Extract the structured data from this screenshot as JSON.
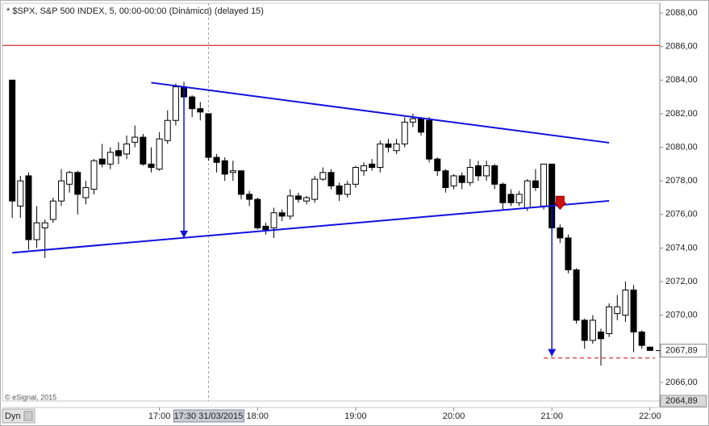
{
  "chart_data": {
    "type": "candlestick",
    "title": "* $SPX, S&P 500 INDEX, 5, 00:00-00:00 (Dinámico) (delayed 15)",
    "copyright": "© eSignal, 2015",
    "tab": "Dyn",
    "up_color": "#ffffff",
    "down_color": "#000000",
    "x": [
      "15:30",
      "15:35",
      "15:40",
      "15:45",
      "15:50",
      "15:55",
      "16:00",
      "16:05",
      "16:10",
      "16:15",
      "16:20",
      "16:25",
      "16:30",
      "16:35",
      "16:40",
      "16:45",
      "16:50",
      "16:55",
      "17:00",
      "17:05",
      "17:10",
      "17:15",
      "17:20",
      "17:25",
      "17:30",
      "17:35",
      "17:40",
      "17:45",
      "17:50",
      "17:55",
      "18:00",
      "18:05",
      "18:10",
      "18:15",
      "18:20",
      "18:25",
      "18:30",
      "18:35",
      "18:40",
      "18:45",
      "18:50",
      "18:55",
      "19:00",
      "19:05",
      "19:10",
      "19:15",
      "19:20",
      "19:25",
      "19:30",
      "19:35",
      "19:40",
      "19:45",
      "19:50",
      "19:55",
      "20:00",
      "20:05",
      "20:10",
      "20:15",
      "20:20",
      "20:25",
      "20:30",
      "20:35",
      "20:40",
      "20:45",
      "20:50",
      "20:55",
      "21:00",
      "21:05",
      "21:10",
      "21:15",
      "21:20",
      "21:25",
      "21:30",
      "21:35",
      "21:40",
      "21:45",
      "21:50",
      "21:55",
      "22:00"
    ],
    "open": [
      2084,
      2076.5,
      2078.3,
      2074.5,
      2075.2,
      2075.7,
      2076.8,
      2077.8,
      2078.5,
      2077,
      2077.5,
      2079.3,
      2079,
      2079.8,
      2079.6,
      2080.3,
      2080.6,
      2079,
      2078.7,
      2080.4,
      2081.6,
      2083.6,
      2083,
      2082.3,
      2082,
      2079.4,
      2079.2,
      2078.5,
      2078.6,
      2077.2,
      2076.9,
      2075.3,
      2075.2,
      2076.1,
      2075.9,
      2077.1,
      2076.8,
      2076.9,
      2078.1,
      2078.5,
      2077.7,
      2077.2,
      2077.8,
      2078.6,
      2079,
      2078.8,
      2080.2,
      2079.8,
      2080.2,
      2081.5,
      2081.7,
      2081.6,
      2079.3,
      2078.6,
      2077.7,
      2078.3,
      2077.9,
      2078.9,
      2078.3,
      2078.9,
      2077.8,
      2077.2,
      2076.7,
      2076.4,
      2078,
      2076.5,
      2079,
      2075.2,
      2074.6,
      2072.7,
      2069.7,
      2068.5,
      2069,
      2068.9,
      2070.1,
      2070,
      2071.5,
      2069,
      2068.1
    ],
    "high": [
      2084,
      2078.3,
      2078.5,
      2076.5,
      2075.7,
      2077,
      2078.7,
      2078.6,
      2078.6,
      2078,
      2079.3,
      2080.2,
      2080,
      2080.3,
      2080.7,
      2081.3,
      2080.8,
      2080,
      2080.9,
      2082.2,
      2083.8,
      2083.9,
      2083.1,
      2082.7,
      2082,
      2079.6,
      2079.4,
      2079.2,
      2078.6,
      2077.4,
      2077,
      2075.5,
      2076.4,
      2076.3,
      2077.5,
      2077.3,
      2077.1,
      2078.3,
      2078.8,
      2078.7,
      2077.9,
      2078,
      2078.9,
      2079.1,
      2079.3,
      2080.4,
      2080.5,
      2080.5,
      2081.8,
      2082,
      2081.8,
      2081.8,
      2079.4,
      2078.7,
      2078.4,
      2078.5,
      2079.3,
      2079.2,
      2079.2,
      2079,
      2077.9,
      2077.5,
      2077.4,
      2078.1,
      2078.7,
      2079,
      2079,
      2075.4,
      2074.8,
      2072.8,
      2069.8,
      2070,
      2069.2,
      2070.7,
      2071.2,
      2072,
      2071.8,
      2069.1,
      2068.1
    ],
    "low": [
      2075.8,
      2075.8,
      2073.9,
      2074,
      2073.4,
      2075.5,
      2076.5,
      2077.3,
      2076,
      2076.6,
      2077.2,
      2078.8,
      2078.7,
      2079,
      2079.3,
      2080,
      2078.9,
      2078.5,
      2078.6,
      2080.2,
      2081.3,
      2082.7,
      2081.8,
      2081.6,
      2079.2,
      2078.5,
      2078,
      2078,
      2076.9,
      2076.5,
      2075.1,
      2074.8,
      2074.6,
      2075.6,
      2075.7,
      2076.7,
      2076.6,
      2076.7,
      2078,
      2077.5,
      2076.8,
      2077,
      2077.6,
      2078.3,
      2078.6,
      2078.5,
      2079.7,
      2079.6,
      2080,
      2081.2,
      2080.7,
      2079.1,
      2078.3,
      2077.3,
      2077.5,
      2077.5,
      2077.7,
      2078,
      2078,
      2077.5,
      2076.3,
      2076.5,
      2076.5,
      2076.2,
      2077.4,
      2076.3,
      2074.8,
      2074.3,
      2072.5,
      2069.5,
      2068,
      2068.3,
      2067,
      2068.7,
      2069.7,
      2069.6,
      2067.8,
      2068,
      2067.9
    ],
    "close": [
      2076.8,
      2078,
      2074.5,
      2075.5,
      2075.5,
      2076.8,
      2078,
      2078.5,
      2077.2,
      2077.6,
      2079.2,
      2079,
      2079.7,
      2079.5,
      2080.2,
      2080.6,
      2079,
      2078.8,
      2080.5,
      2081.6,
      2083.6,
      2083,
      2082.3,
      2082.1,
      2079.4,
      2079.1,
      2078.4,
      2078.6,
      2077.2,
      2076.9,
      2075.2,
      2075.1,
      2076.1,
      2075.9,
      2077.1,
      2076.9,
      2077,
      2078.1,
      2078.5,
      2077.7,
      2077.2,
      2077.8,
      2078.8,
      2078.9,
      2078.8,
      2080.2,
      2080,
      2080.2,
      2081.5,
      2081.7,
      2080.9,
      2079.3,
      2078.6,
      2077.6,
      2078.3,
      2077.9,
      2078.8,
      2078.3,
      2078.9,
      2077.8,
      2076.7,
      2076.7,
      2077.2,
      2078,
      2077.6,
      2079,
      2075.2,
      2074.6,
      2072.7,
      2069.7,
      2068.5,
      2069.7,
      2068.6,
      2070.5,
      2070.5,
      2071.5,
      2069,
      2068.2,
      2067.9
    ],
    "xlim": [
      "15:24",
      "22:06"
    ],
    "xticks": [
      "17:00",
      "18:00",
      "19:00",
      "20:00",
      "21:00",
      "22:00"
    ],
    "ylim": [
      2064.89,
      2088.58
    ],
    "yticks": [
      {
        "value": 2088,
        "label": "2088,00"
      },
      {
        "value": 2086,
        "label": "2086,00"
      },
      {
        "value": 2084,
        "label": "2084,00"
      },
      {
        "value": 2082,
        "label": "2082,00"
      },
      {
        "value": 2080,
        "label": "2080,00"
      },
      {
        "value": 2078,
        "label": "2078,00"
      },
      {
        "value": 2076,
        "label": "2076,00"
      },
      {
        "value": 2074,
        "label": "2074,00"
      },
      {
        "value": 2072,
        "label": "2072,00"
      },
      {
        "value": 2070,
        "label": "2070,00"
      },
      {
        "value": 2068,
        "label": "2068,00"
      },
      {
        "value": 2066,
        "label": "2066,00"
      }
    ],
    "last_price": {
      "value": 2067.89,
      "label": "2067,89"
    },
    "axis_bottom_label": {
      "value": 2064.89,
      "label": "2064,89"
    },
    "crosshair": {
      "x": "17:30",
      "label": "17:30 31/03/2015"
    },
    "hlines": [
      {
        "value": 2086.07,
        "color": "#cc0000"
      }
    ],
    "trendlines": [
      {
        "x": [
          "16:55",
          "21:35"
        ],
        "values": [
          2083.85,
          2080.27
        ],
        "color": "#1010e0"
      },
      {
        "x": [
          "15:30",
          "21:35"
        ],
        "values": [
          2073.72,
          2076.81
        ],
        "color": "#1010e0"
      }
    ],
    "arrows": [
      {
        "x": [
          "17:15",
          "17:15"
        ],
        "values": [
          2083.6,
          2074.6
        ],
        "color": "#1010e0"
      },
      {
        "x": [
          "21:00",
          "21:00"
        ],
        "values": [
          2076.4,
          2067.55
        ],
        "color": "#1010e0"
      }
    ],
    "dashed_lines": [
      {
        "x": [
          "20:55",
          "22:03"
        ],
        "values": [
          2067.45,
          2067.45
        ],
        "color": "#cc0000"
      }
    ],
    "signal": {
      "x": "21:05",
      "value": 2076.6,
      "color": "#cc1111"
    }
  }
}
